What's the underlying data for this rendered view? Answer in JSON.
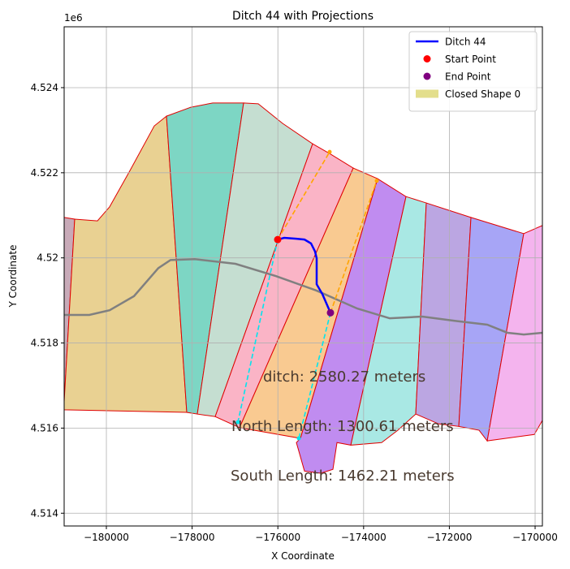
{
  "chart_data": {
    "type": "shapes",
    "title": "Ditch 44 with Projections",
    "xlabel": "X Coordinate",
    "ylabel": "Y Coordinate",
    "y_offset_label": "1e6",
    "xlim": [
      -180985,
      -169830
    ],
    "ylim": [
      4.5137,
      4.52543
    ],
    "xticks": [
      {
        "value": -180000,
        "label": "−180000"
      },
      {
        "value": -178000,
        "label": "−178000"
      },
      {
        "value": -176000,
        "label": "−176000"
      },
      {
        "value": -174000,
        "label": "−174000"
      },
      {
        "value": -172000,
        "label": "−172000"
      },
      {
        "value": -170000,
        "label": "−170000"
      }
    ],
    "yticks": [
      4.514,
      4.516,
      4.518,
      4.52,
      4.522,
      4.524
    ],
    "grid": true,
    "edge_color": "#e00000",
    "polygons": [
      {
        "color": "#c8aab8",
        "x": [
          -180985,
          -180739,
          -180985
        ],
        "y": [
          4.52095,
          4.52091,
          4.51662
        ]
      },
      {
        "color": "#e9d192",
        "x": [
          -180739,
          -180208,
          -179924,
          -179451,
          -178883,
          -178598,
          -178125,
          -180985,
          -180985
        ],
        "y": [
          4.52091,
          4.52087,
          4.5212,
          4.52205,
          4.5231,
          4.52333,
          4.51637,
          4.51643,
          4.51662
        ]
      },
      {
        "color": "#7dd6c4",
        "x": [
          -178598,
          -178030,
          -177519,
          -176799,
          -177879,
          -178125
        ],
        "y": [
          4.52333,
          4.52354,
          4.52364,
          4.52364,
          4.51633,
          4.51637
        ]
      },
      {
        "color": "#c5ded1",
        "x": [
          -176799,
          -176458,
          -175890,
          -175189,
          -177462,
          -177879
        ],
        "y": [
          4.52364,
          4.52362,
          4.52316,
          4.52268,
          4.51627,
          4.51633
        ]
      },
      {
        "color": "#fab4c6",
        "x": [
          -175189,
          -174773,
          -174242,
          -176894,
          -177462
        ],
        "y": [
          4.52268,
          4.52244,
          4.52211,
          4.51601,
          4.51627
        ]
      },
      {
        "color": "#f9ca91",
        "x": [
          -174242,
          -173674,
          -175473,
          -176894
        ],
        "y": [
          4.52211,
          4.52186,
          4.51576,
          4.51601
        ]
      },
      {
        "color": "#c08cf0",
        "x": [
          -173674,
          -173011,
          -174299,
          -174621,
          -174716,
          -175000,
          -175379,
          -175568,
          -175473
        ],
        "y": [
          4.52186,
          4.52144,
          4.5156,
          4.51566,
          4.51503,
          4.51494,
          4.51499,
          4.51566,
          4.51576
        ]
      },
      {
        "color": "#a9e8e4",
        "x": [
          -173011,
          -172538,
          -172784,
          -173201,
          -173580,
          -174299
        ],
        "y": [
          4.52144,
          4.52129,
          4.51633,
          4.51595,
          4.51566,
          4.5156
        ]
      },
      {
        "color": "#bba6e2",
        "x": [
          -172538,
          -171496,
          -171780,
          -172254,
          -172784
        ],
        "y": [
          4.52129,
          4.52095,
          4.51604,
          4.5161,
          4.51633
        ]
      },
      {
        "color": "#a7a5f6",
        "x": [
          -171496,
          -170265,
          -171117,
          -171307,
          -171780
        ],
        "y": [
          4.52095,
          4.52057,
          4.5157,
          4.51595,
          4.51604
        ]
      },
      {
        "color": "#f4b4ee",
        "x": [
          -170265,
          -169830,
          -169830,
          -170019,
          -171117
        ],
        "y": [
          4.52057,
          4.52076,
          4.51618,
          4.51585,
          4.5157
        ]
      }
    ],
    "series": [
      {
        "color": "#808080",
        "width": 2.5,
        "x": [
          -180985,
          -180398,
          -179924,
          -179356,
          -178788,
          -178504,
          -177936,
          -176989,
          -176042,
          -175095,
          -174148,
          -173390,
          -172633,
          -171875,
          -171117,
          -170644,
          -170265,
          -169830
        ],
        "y": [
          4.51866,
          4.51866,
          4.51877,
          4.5191,
          4.51976,
          4.51995,
          4.51997,
          4.51986,
          4.51957,
          4.51923,
          4.51881,
          4.51858,
          4.51862,
          4.51852,
          4.51843,
          4.51824,
          4.5182,
          4.51824
        ]
      },
      {
        "color": "#ffa500",
        "dashed": true,
        "x": [
          -176004,
          -174792
        ],
        "y": [
          4.52043,
          4.52249
        ]
      },
      {
        "color": "#ffa500",
        "dashed": true,
        "x": [
          -174773,
          -173693
        ],
        "y": [
          4.51871,
          4.52181
        ]
      },
      {
        "color": "#00e5ee",
        "dashed": true,
        "x": [
          -176004,
          -176932
        ],
        "y": [
          4.52043,
          4.51614
        ]
      },
      {
        "color": "#00e5ee",
        "dashed": true,
        "x": [
          -174773,
          -175511
        ],
        "y": [
          4.51871,
          4.51576
        ]
      },
      {
        "name": "Ditch 44",
        "color": "#0000ff",
        "width": 2.5,
        "x": [
          -176004,
          -175852,
          -175568,
          -175379,
          -175227,
          -175133,
          -175095,
          -175095,
          -174962,
          -174773
        ],
        "y": [
          4.52043,
          4.52047,
          4.52045,
          4.52043,
          4.52034,
          4.52015,
          4.51999,
          4.51938,
          4.51915,
          4.51871
        ]
      }
    ],
    "points": [
      {
        "name": "Start Point",
        "color": "#ff0000",
        "x": -176004,
        "y": 4.52043
      },
      {
        "name": "End Point",
        "color": "#800080",
        "x": -174773,
        "y": 4.51871
      }
    ],
    "legend_patch": {
      "name": "Closed Shape 0",
      "color": "#e3de8c"
    },
    "legend": "upper right",
    "annotations": [
      "ditch: 2580.27 meters",
      "North Length: 1300.61 meters",
      "South Length: 1462.21 meters"
    ]
  }
}
